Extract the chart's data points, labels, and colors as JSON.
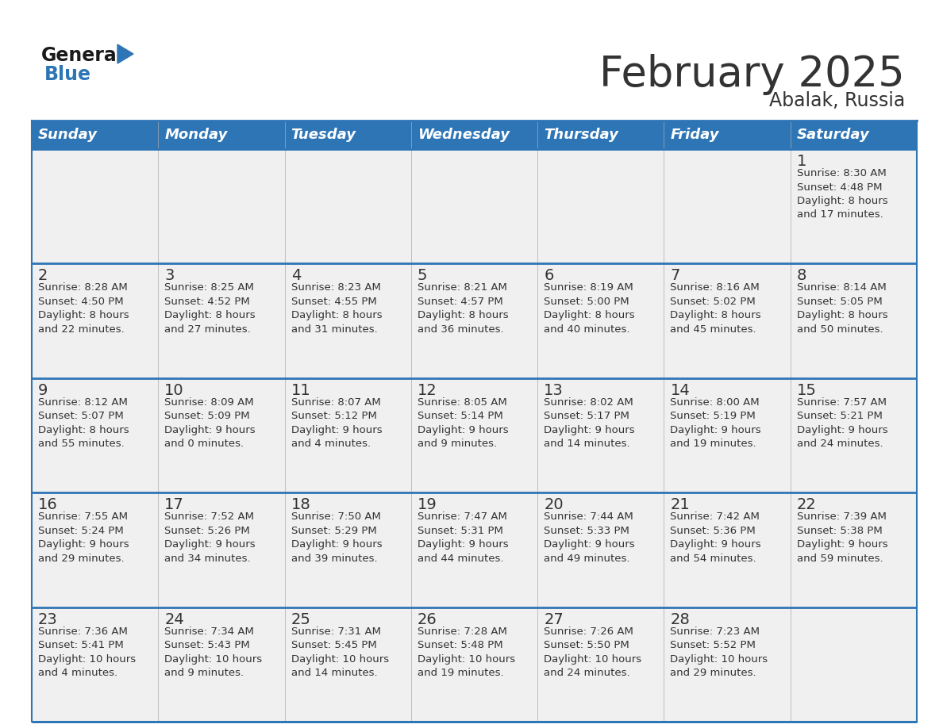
{
  "title": "February 2025",
  "subtitle": "Abalak, Russia",
  "header_bg": "#2E75B6",
  "header_text_color": "#FFFFFF",
  "cell_bg": "#F0F0F0",
  "border_color": "#2E75B6",
  "row_border_color": "#4488CC",
  "text_color": "#333333",
  "day_number_color": "#333333",
  "days_of_week": [
    "Sunday",
    "Monday",
    "Tuesday",
    "Wednesday",
    "Thursday",
    "Friday",
    "Saturday"
  ],
  "calendar": [
    [
      {
        "day": null,
        "info": null
      },
      {
        "day": null,
        "info": null
      },
      {
        "day": null,
        "info": null
      },
      {
        "day": null,
        "info": null
      },
      {
        "day": null,
        "info": null
      },
      {
        "day": null,
        "info": null
      },
      {
        "day": 1,
        "info": "Sunrise: 8:30 AM\nSunset: 4:48 PM\nDaylight: 8 hours\nand 17 minutes."
      }
    ],
    [
      {
        "day": 2,
        "info": "Sunrise: 8:28 AM\nSunset: 4:50 PM\nDaylight: 8 hours\nand 22 minutes."
      },
      {
        "day": 3,
        "info": "Sunrise: 8:25 AM\nSunset: 4:52 PM\nDaylight: 8 hours\nand 27 minutes."
      },
      {
        "day": 4,
        "info": "Sunrise: 8:23 AM\nSunset: 4:55 PM\nDaylight: 8 hours\nand 31 minutes."
      },
      {
        "day": 5,
        "info": "Sunrise: 8:21 AM\nSunset: 4:57 PM\nDaylight: 8 hours\nand 36 minutes."
      },
      {
        "day": 6,
        "info": "Sunrise: 8:19 AM\nSunset: 5:00 PM\nDaylight: 8 hours\nand 40 minutes."
      },
      {
        "day": 7,
        "info": "Sunrise: 8:16 AM\nSunset: 5:02 PM\nDaylight: 8 hours\nand 45 minutes."
      },
      {
        "day": 8,
        "info": "Sunrise: 8:14 AM\nSunset: 5:05 PM\nDaylight: 8 hours\nand 50 minutes."
      }
    ],
    [
      {
        "day": 9,
        "info": "Sunrise: 8:12 AM\nSunset: 5:07 PM\nDaylight: 8 hours\nand 55 minutes."
      },
      {
        "day": 10,
        "info": "Sunrise: 8:09 AM\nSunset: 5:09 PM\nDaylight: 9 hours\nand 0 minutes."
      },
      {
        "day": 11,
        "info": "Sunrise: 8:07 AM\nSunset: 5:12 PM\nDaylight: 9 hours\nand 4 minutes."
      },
      {
        "day": 12,
        "info": "Sunrise: 8:05 AM\nSunset: 5:14 PM\nDaylight: 9 hours\nand 9 minutes."
      },
      {
        "day": 13,
        "info": "Sunrise: 8:02 AM\nSunset: 5:17 PM\nDaylight: 9 hours\nand 14 minutes."
      },
      {
        "day": 14,
        "info": "Sunrise: 8:00 AM\nSunset: 5:19 PM\nDaylight: 9 hours\nand 19 minutes."
      },
      {
        "day": 15,
        "info": "Sunrise: 7:57 AM\nSunset: 5:21 PM\nDaylight: 9 hours\nand 24 minutes."
      }
    ],
    [
      {
        "day": 16,
        "info": "Sunrise: 7:55 AM\nSunset: 5:24 PM\nDaylight: 9 hours\nand 29 minutes."
      },
      {
        "day": 17,
        "info": "Sunrise: 7:52 AM\nSunset: 5:26 PM\nDaylight: 9 hours\nand 34 minutes."
      },
      {
        "day": 18,
        "info": "Sunrise: 7:50 AM\nSunset: 5:29 PM\nDaylight: 9 hours\nand 39 minutes."
      },
      {
        "day": 19,
        "info": "Sunrise: 7:47 AM\nSunset: 5:31 PM\nDaylight: 9 hours\nand 44 minutes."
      },
      {
        "day": 20,
        "info": "Sunrise: 7:44 AM\nSunset: 5:33 PM\nDaylight: 9 hours\nand 49 minutes."
      },
      {
        "day": 21,
        "info": "Sunrise: 7:42 AM\nSunset: 5:36 PM\nDaylight: 9 hours\nand 54 minutes."
      },
      {
        "day": 22,
        "info": "Sunrise: 7:39 AM\nSunset: 5:38 PM\nDaylight: 9 hours\nand 59 minutes."
      }
    ],
    [
      {
        "day": 23,
        "info": "Sunrise: 7:36 AM\nSunset: 5:41 PM\nDaylight: 10 hours\nand 4 minutes."
      },
      {
        "day": 24,
        "info": "Sunrise: 7:34 AM\nSunset: 5:43 PM\nDaylight: 10 hours\nand 9 minutes."
      },
      {
        "day": 25,
        "info": "Sunrise: 7:31 AM\nSunset: 5:45 PM\nDaylight: 10 hours\nand 14 minutes."
      },
      {
        "day": 26,
        "info": "Sunrise: 7:28 AM\nSunset: 5:48 PM\nDaylight: 10 hours\nand 19 minutes."
      },
      {
        "day": 27,
        "info": "Sunrise: 7:26 AM\nSunset: 5:50 PM\nDaylight: 10 hours\nand 24 minutes."
      },
      {
        "day": 28,
        "info": "Sunrise: 7:23 AM\nSunset: 5:52 PM\nDaylight: 10 hours\nand 29 minutes."
      },
      {
        "day": null,
        "info": null
      }
    ]
  ],
  "logo_general_color": "#1a1a1a",
  "logo_blue_color": "#2E75B6",
  "title_fontsize": 38,
  "subtitle_fontsize": 17,
  "header_fontsize": 13,
  "day_number_fontsize": 14,
  "info_fontsize": 9.5
}
